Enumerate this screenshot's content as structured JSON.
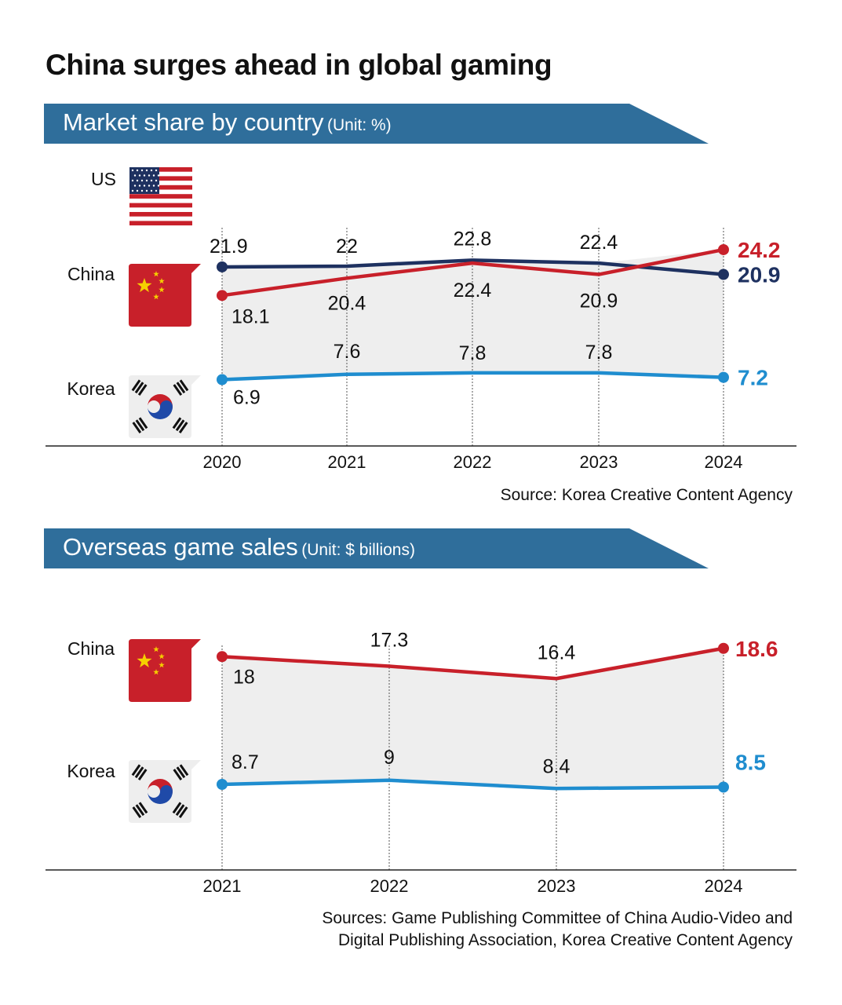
{
  "title": "China surges ahead in global gaming",
  "sections": [
    {
      "title": "Market share by country",
      "unit": "(Unit: %)"
    },
    {
      "title": "Overseas game sales",
      "unit": "(Unit: $ billions)"
    }
  ],
  "colors": {
    "band": "#2f6e9b",
    "china": "#c8202a",
    "us": "#1e3160",
    "korea": "#1f8dcf",
    "fill": "#eeeeee"
  },
  "chart_data": [
    {
      "type": "line",
      "title": "Market share by country",
      "unit": "(Unit: %)",
      "categories": [
        "2020",
        "2021",
        "2022",
        "2023",
        "2024"
      ],
      "series": [
        {
          "name": "US",
          "values": [
            21.9,
            22,
            22.8,
            22.4,
            20.9
          ],
          "color": "#1e3160",
          "icon": "us-flag-icon"
        },
        {
          "name": "China",
          "values": [
            18.1,
            20.4,
            22.4,
            20.9,
            24.2
          ],
          "color": "#c8202a",
          "icon": "china-flag-icon"
        },
        {
          "name": "Korea",
          "values": [
            6.9,
            7.6,
            7.8,
            7.8,
            7.2
          ],
          "color": "#1f8dcf",
          "icon": "korea-flag-icon"
        }
      ],
      "source": "Source: Korea Creative Content Agency"
    },
    {
      "type": "line",
      "title": "Overseas game sales",
      "unit": "(Unit: $ billions)",
      "categories": [
        "2021",
        "2022",
        "2023",
        "2024"
      ],
      "series": [
        {
          "name": "China",
          "values": [
            18,
            17.3,
            16.4,
            18.6
          ],
          "color": "#c8202a",
          "icon": "china-flag-icon"
        },
        {
          "name": "Korea",
          "values": [
            8.7,
            9,
            8.4,
            8.5
          ],
          "color": "#1f8dcf",
          "icon": "korea-flag-icon"
        }
      ],
      "source_lines": [
        "Sources: Game Publishing Committee of China Audio-Video and",
        "Digital Publishing Association, Korea Creative Content Agency"
      ]
    }
  ]
}
